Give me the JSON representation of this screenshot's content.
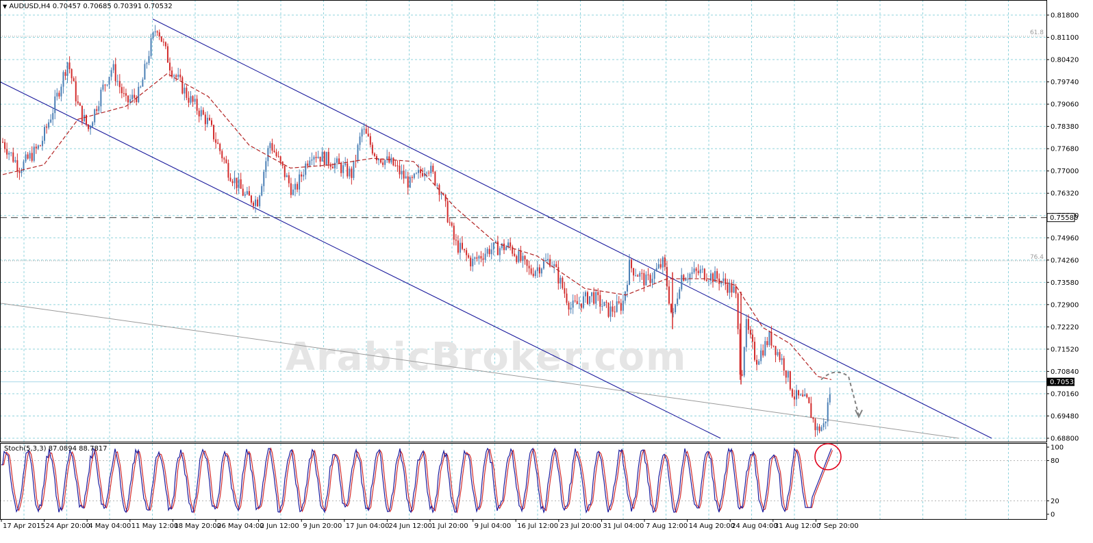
{
  "header": {
    "symbol_line": "AUDUSD,H4  0.70457 0.70685 0.70391 0.70532"
  },
  "watermark": "ArabicBroker.com",
  "colors": {
    "bull_candle": "#4a7fb5",
    "bear_candle": "#d22b2b",
    "moving_average": "#b22222",
    "channel": "#1a1a9c",
    "trendline": "#9a9a9a",
    "grid": "#8fd3dc",
    "stoch_main": "#1a1a9c",
    "stoch_signal": "#d22b2b",
    "highlight_circle": "#e0001a",
    "current_price_bg": "#000000"
  },
  "chart_data": [
    {
      "type": "candlestick",
      "panel": "price",
      "ylim": [
        0.688,
        0.818
      ],
      "y_ticks": [
        "0.81800",
        "0.81100",
        "0.80420",
        "0.79740",
        "0.79060",
        "0.78380",
        "0.77680",
        "0.77000",
        "0.76320",
        "0.75580",
        "0.74960",
        "0.74260",
        "0.73580",
        "0.72900",
        "0.72220",
        "0.71520",
        "0.70840",
        "0.70160",
        "0.69480",
        "0.68800"
      ],
      "x_ticks": [
        "17 Apr 2015",
        "24 Apr 20:00",
        "4 May 04:00",
        "11 May 12:00",
        "18 May 20:00",
        "26 May 04:00",
        "2 Jun 12:00",
        "9 Jun 20:00",
        "17 Jun 04:00",
        "24 Jun 12:00",
        "1 Jul 20:00",
        "9 Jul 04:00",
        "16 Jul 12:00",
        "23 Jul 20:00",
        "31 Jul 04:00",
        "7 Aug 12:00",
        "14 Aug 20:00",
        "24 Aug 04:00",
        "31 Aug 12:00",
        "7 Sep 20:00"
      ],
      "last_price": "0.70532",
      "marked_level": "0.75580",
      "fib_levels": [
        {
          "label": "61.8",
          "value": 0.8115
        },
        {
          "label": "76.4",
          "value": 0.7425
        }
      ],
      "price_path": [
        {
          "x": 0,
          "y": 0.779
        },
        {
          "x": 25,
          "y": 0.771
        },
        {
          "x": 55,
          "y": 0.778
        },
        {
          "x": 75,
          "y": 0.79
        },
        {
          "x": 95,
          "y": 0.804
        },
        {
          "x": 110,
          "y": 0.79
        },
        {
          "x": 125,
          "y": 0.783
        },
        {
          "x": 145,
          "y": 0.795
        },
        {
          "x": 160,
          "y": 0.802
        },
        {
          "x": 180,
          "y": 0.791
        },
        {
          "x": 200,
          "y": 0.794
        },
        {
          "x": 215,
          "y": 0.808
        },
        {
          "x": 225,
          "y": 0.815
        },
        {
          "x": 245,
          "y": 0.802
        },
        {
          "x": 270,
          "y": 0.793
        },
        {
          "x": 300,
          "y": 0.785
        },
        {
          "x": 330,
          "y": 0.77
        },
        {
          "x": 355,
          "y": 0.762
        },
        {
          "x": 372,
          "y": 0.761
        },
        {
          "x": 390,
          "y": 0.779
        },
        {
          "x": 410,
          "y": 0.77
        },
        {
          "x": 425,
          "y": 0.763
        },
        {
          "x": 450,
          "y": 0.776
        },
        {
          "x": 480,
          "y": 0.773
        },
        {
          "x": 510,
          "y": 0.769
        },
        {
          "x": 525,
          "y": 0.783
        },
        {
          "x": 545,
          "y": 0.775
        },
        {
          "x": 570,
          "y": 0.772
        },
        {
          "x": 595,
          "y": 0.766
        },
        {
          "x": 620,
          "y": 0.772
        },
        {
          "x": 640,
          "y": 0.764
        },
        {
          "x": 660,
          "y": 0.748
        },
        {
          "x": 685,
          "y": 0.742
        },
        {
          "x": 710,
          "y": 0.746
        },
        {
          "x": 740,
          "y": 0.747
        },
        {
          "x": 770,
          "y": 0.739
        },
        {
          "x": 800,
          "y": 0.743
        },
        {
          "x": 830,
          "y": 0.728
        },
        {
          "x": 860,
          "y": 0.732
        },
        {
          "x": 885,
          "y": 0.727
        },
        {
          "x": 905,
          "y": 0.729
        },
        {
          "x": 915,
          "y": 0.741
        },
        {
          "x": 940,
          "y": 0.736
        },
        {
          "x": 965,
          "y": 0.742
        },
        {
          "x": 978,
          "y": 0.724
        },
        {
          "x": 990,
          "y": 0.738
        },
        {
          "x": 1020,
          "y": 0.739
        },
        {
          "x": 1045,
          "y": 0.737
        },
        {
          "x": 1070,
          "y": 0.733
        },
        {
          "x": 1078,
          "y": 0.705
        },
        {
          "x": 1085,
          "y": 0.723
        },
        {
          "x": 1100,
          "y": 0.712
        },
        {
          "x": 1120,
          "y": 0.719
        },
        {
          "x": 1140,
          "y": 0.711
        },
        {
          "x": 1155,
          "y": 0.701
        },
        {
          "x": 1175,
          "y": 0.699
        },
        {
          "x": 1188,
          "y": 0.6905
        },
        {
          "x": 1200,
          "y": 0.692
        },
        {
          "x": 1210,
          "y": 0.705
        }
      ],
      "moving_average_path": [
        {
          "x": 0,
          "y": 0.769
        },
        {
          "x": 60,
          "y": 0.772
        },
        {
          "x": 110,
          "y": 0.786
        },
        {
          "x": 180,
          "y": 0.79
        },
        {
          "x": 240,
          "y": 0.8
        },
        {
          "x": 300,
          "y": 0.793
        },
        {
          "x": 360,
          "y": 0.778
        },
        {
          "x": 420,
          "y": 0.771
        },
        {
          "x": 480,
          "y": 0.772
        },
        {
          "x": 540,
          "y": 0.774
        },
        {
          "x": 600,
          "y": 0.773
        },
        {
          "x": 660,
          "y": 0.759
        },
        {
          "x": 720,
          "y": 0.748
        },
        {
          "x": 780,
          "y": 0.744
        },
        {
          "x": 850,
          "y": 0.734
        },
        {
          "x": 910,
          "y": 0.732
        },
        {
          "x": 970,
          "y": 0.737
        },
        {
          "x": 1030,
          "y": 0.737
        },
        {
          "x": 1070,
          "y": 0.735
        },
        {
          "x": 1110,
          "y": 0.722
        },
        {
          "x": 1150,
          "y": 0.717
        },
        {
          "x": 1190,
          "y": 0.707
        },
        {
          "x": 1210,
          "y": 0.706
        }
      ],
      "forecast_arrow": [
        {
          "x": 1195,
          "y": 0.706
        },
        {
          "x": 1215,
          "y": 0.71
        },
        {
          "x": 1235,
          "y": 0.707
        },
        {
          "x": 1250,
          "y": 0.695
        }
      ]
    },
    {
      "type": "line",
      "panel": "oscillator",
      "label": "Stoch(5,3,3) 87.0894 88.7817",
      "ylim": [
        0,
        100
      ],
      "y_ticks": [
        "100",
        "80",
        "20",
        "0"
      ]
    }
  ]
}
